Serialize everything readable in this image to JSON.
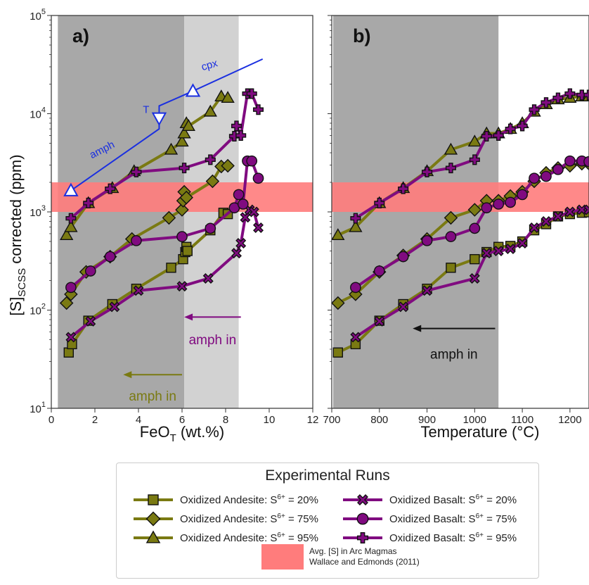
{
  "colors": {
    "andesite": "#7a7a12",
    "basalt": "#800b80",
    "arc_band": "#ff7c7c",
    "dark_gray": "#a8a8a8",
    "light_gray": "#d2d2d2",
    "blue": "#1a2fe0",
    "amph_andesite": "#7a7a12",
    "amph_basalt": "#800b80"
  },
  "chart_data": [
    {
      "type": "line",
      "panel_label": "a)",
      "xlabel": "FeO",
      "xlabel_sub": "T",
      "xlabel_unit": " (wt.%)",
      "ylabel_main": "[S]",
      "ylabel_sub": "SCSS",
      "ylabel_rest": " corrected (ppm)",
      "y_scale": "log",
      "xlim": [
        0,
        12
      ],
      "ylim": [
        10,
        100000
      ],
      "xticks": [
        0,
        2,
        4,
        6,
        8,
        10,
        12
      ],
      "yticks": [
        {
          "value": 10,
          "base": "10",
          "exp": "1"
        },
        {
          "value": 100,
          "base": "10",
          "exp": "2"
        },
        {
          "value": 1000,
          "base": "10",
          "exp": "3"
        },
        {
          "value": 10000,
          "base": "10",
          "exp": "4"
        },
        {
          "value": 100000,
          "base": "10",
          "exp": "5"
        }
      ],
      "shaded": [
        {
          "x0": 0.3,
          "x1": 6.1,
          "tone": "dark"
        },
        {
          "x0": 6.1,
          "x1": 8.6,
          "tone": "light"
        }
      ],
      "arc_band": [
        1000,
        2000
      ],
      "series": [
        {
          "name": "Oxidized Andesite: S6+ = 20%",
          "rock": "andesite",
          "marker": "square",
          "x": [
            0.8,
            0.95,
            1.7,
            2.8,
            3.9,
            5.5,
            6.05,
            6.15,
            6.2,
            6.25,
            7.3,
            7.9,
            8.1
          ],
          "y": [
            37,
            45,
            78,
            115,
            165,
            270,
            330,
            390,
            440,
            400,
            650,
            980,
            950
          ]
        },
        {
          "name": "Oxidized Andesite: S6+ = 75%",
          "rock": "andesite",
          "marker": "diamond",
          "x": [
            0.7,
            0.9,
            1.6,
            2.7,
            3.7,
            5.4,
            6.0,
            6.05,
            6.1,
            6.2,
            7.4,
            7.8,
            8.1
          ],
          "y": [
            118,
            145,
            245,
            350,
            530,
            870,
            1050,
            1300,
            1600,
            1400,
            2050,
            2900,
            2950
          ]
        },
        {
          "name": "Oxidized Andesite: S6+ = 95%",
          "rock": "andesite",
          "marker": "triangle",
          "x": [
            0.7,
            0.9,
            1.7,
            2.8,
            3.8,
            5.5,
            6.0,
            6.1,
            6.2,
            6.3,
            7.3,
            7.8,
            8.1
          ],
          "y": [
            580,
            700,
            1230,
            1750,
            2600,
            4300,
            5200,
            6300,
            8000,
            7500,
            10500,
            15000,
            14500
          ]
        },
        {
          "name": "Oxidized Basalt: S6+ = 20%",
          "rock": "basalt",
          "marker": "x",
          "x": [
            0.9,
            1.8,
            2.9,
            4.0,
            6.0,
            7.2,
            8.5,
            8.7,
            8.9,
            9.1,
            9.3,
            9.5
          ],
          "y": [
            53,
            77,
            108,
            158,
            175,
            210,
            380,
            480,
            880,
            1050,
            1000,
            690
          ]
        },
        {
          "name": "Oxidized Basalt: S6+ = 75%",
          "rock": "basalt",
          "marker": "circle",
          "x": [
            0.9,
            1.8,
            2.7,
            3.9,
            6.0,
            7.3,
            8.4,
            8.6,
            8.8,
            9.0,
            9.2,
            9.5
          ],
          "y": [
            170,
            250,
            350,
            510,
            560,
            680,
            1100,
            1500,
            1200,
            3300,
            3300,
            2200
          ]
        },
        {
          "name": "Oxidized Basalt: S6+ = 95%",
          "rock": "basalt",
          "marker": "plus",
          "x": [
            0.9,
            1.7,
            2.7,
            3.9,
            6.1,
            7.3,
            8.4,
            8.5,
            8.7,
            9.0,
            9.2,
            9.5
          ],
          "y": [
            860,
            1230,
            1720,
            2550,
            2800,
            3400,
            5900,
            7500,
            6000,
            16000,
            16000,
            11000
          ]
        }
      ],
      "annotations": {
        "blue_line": {
          "x": [
            0.9,
            4.95,
            4.95,
            6.5,
            9.7
          ],
          "y": [
            1650,
            7000,
            12000,
            17000,
            36000
          ]
        },
        "blue_triangles": [
          {
            "x": 0.9,
            "y": 1650,
            "dir": "up"
          },
          {
            "x": 4.95,
            "y": 9000,
            "dir": "down"
          },
          {
            "x": 6.5,
            "y": 17000,
            "dir": "up"
          }
        ],
        "blue_labels": [
          {
            "text": "amph",
            "x": 2.4,
            "y": 4000,
            "rotate": -27
          },
          {
            "text": "T",
            "x": 4.35,
            "y": 10200,
            "rotate": 0
          },
          {
            "text": "cpx",
            "x": 7.3,
            "y": 29000,
            "rotate": -16
          }
        ],
        "amph_in_basalt": {
          "text": "amph in",
          "x_from": 8.7,
          "x_to": 6.1,
          "y_arrow": 85,
          "y_text": 45
        },
        "amph_in_andesite": {
          "text": "amph in",
          "x_from": 6.0,
          "x_to": 3.3,
          "y_arrow": 22,
          "y_text": 12
        }
      }
    },
    {
      "type": "line",
      "panel_label": "b)",
      "xlabel": "Temperature (°C)",
      "y_scale": "log",
      "xlim": [
        700,
        1240
      ],
      "ylim": [
        10,
        100000
      ],
      "xticks": [
        700,
        800,
        900,
        1000,
        1100,
        1200
      ],
      "shaded": [
        {
          "x0": 703,
          "x1": 1050,
          "tone": "dark"
        }
      ],
      "arc_band": [
        1000,
        2000
      ],
      "series": [
        {
          "name": "Oxidized Andesite: S6+ = 20%",
          "rock": "andesite",
          "marker": "square",
          "x": [
            713,
            750,
            800,
            850,
            900,
            950,
            1000,
            1025,
            1050,
            1075,
            1100,
            1125,
            1150,
            1175,
            1200,
            1225,
            1240
          ],
          "y": [
            37,
            45,
            78,
            115,
            165,
            270,
            330,
            390,
            440,
            450,
            500,
            650,
            750,
            900,
            950,
            980,
            990
          ]
        },
        {
          "name": "Oxidized Andesite: S6+ = 75%",
          "rock": "andesite",
          "marker": "diamond",
          "x": [
            713,
            750,
            800,
            850,
            900,
            950,
            1000,
            1025,
            1050,
            1075,
            1100,
            1125,
            1150,
            1175,
            1200,
            1225,
            1240
          ],
          "y": [
            118,
            145,
            245,
            360,
            530,
            870,
            1050,
            1300,
            1300,
            1450,
            1600,
            2050,
            2500,
            2800,
            2950,
            3100,
            3100
          ]
        },
        {
          "name": "Oxidized Andesite: S6+ = 95%",
          "rock": "andesite",
          "marker": "triangle",
          "x": [
            713,
            750,
            800,
            850,
            900,
            950,
            1000,
            1025,
            1050,
            1075,
            1100,
            1125,
            1150,
            1175,
            1200,
            1225,
            1240
          ],
          "y": [
            580,
            700,
            1230,
            1750,
            2600,
            4300,
            5200,
            6300,
            6300,
            7000,
            8000,
            10500,
            12500,
            14000,
            14500,
            15000,
            15000
          ]
        },
        {
          "name": "Oxidized Basalt: S6+ = 20%",
          "rock": "basalt",
          "marker": "x",
          "x": [
            750,
            800,
            850,
            900,
            1000,
            1025,
            1050,
            1075,
            1100,
            1125,
            1150,
            1175,
            1200,
            1225,
            1240
          ],
          "y": [
            53,
            77,
            108,
            158,
            210,
            380,
            400,
            420,
            480,
            690,
            800,
            900,
            1000,
            1050,
            1050
          ]
        },
        {
          "name": "Oxidized Basalt: S6+ = 75%",
          "rock": "basalt",
          "marker": "circle",
          "x": [
            750,
            800,
            850,
            900,
            950,
            1000,
            1025,
            1050,
            1075,
            1100,
            1125,
            1150,
            1175,
            1200,
            1225,
            1240
          ],
          "y": [
            170,
            250,
            350,
            510,
            560,
            680,
            1100,
            1200,
            1250,
            1500,
            2200,
            2300,
            2700,
            3300,
            3300,
            3250
          ]
        },
        {
          "name": "Oxidized Basalt: S6+ = 95%",
          "rock": "basalt",
          "marker": "plus",
          "x": [
            750,
            800,
            850,
            900,
            950,
            1000,
            1025,
            1050,
            1075,
            1100,
            1125,
            1150,
            1175,
            1200,
            1225,
            1240
          ],
          "y": [
            860,
            1230,
            1720,
            2550,
            2800,
            3400,
            5900,
            6000,
            7000,
            7500,
            11000,
            13000,
            14500,
            16000,
            15500,
            15500
          ]
        }
      ],
      "annotations": {
        "amph_in": {
          "text": "amph in",
          "x_from": 1043,
          "x_to": 870,
          "y_arrow": 65,
          "y_text": 32
        }
      }
    }
  ],
  "legend": {
    "title": "Experimental Runs",
    "items": [
      {
        "rock": "andesite",
        "marker": "square",
        "prefix": "Oxidized Andesite: S",
        "sup": "6+",
        "suffix": " = 20%"
      },
      {
        "rock": "basalt",
        "marker": "x",
        "prefix": "Oxidized Basalt: S",
        "sup": "6+",
        "suffix": " = 20%"
      },
      {
        "rock": "andesite",
        "marker": "diamond",
        "prefix": "Oxidized Andesite: S",
        "sup": "6+",
        "suffix": " = 75%"
      },
      {
        "rock": "basalt",
        "marker": "circle",
        "prefix": "Oxidized Basalt: S",
        "sup": "6+",
        "suffix": " = 75%"
      },
      {
        "rock": "andesite",
        "marker": "triangle",
        "prefix": "Oxidized Andesite: S",
        "sup": "6+",
        "suffix": " = 95%"
      },
      {
        "rock": "basalt",
        "marker": "plus",
        "prefix": "Oxidized Basalt: S",
        "sup": "6+",
        "suffix": " = 95%"
      }
    ],
    "band_label_1": "Avg. [S] in Arc Magmas",
    "band_label_2": "Wallace and Edmonds (2011)"
  }
}
